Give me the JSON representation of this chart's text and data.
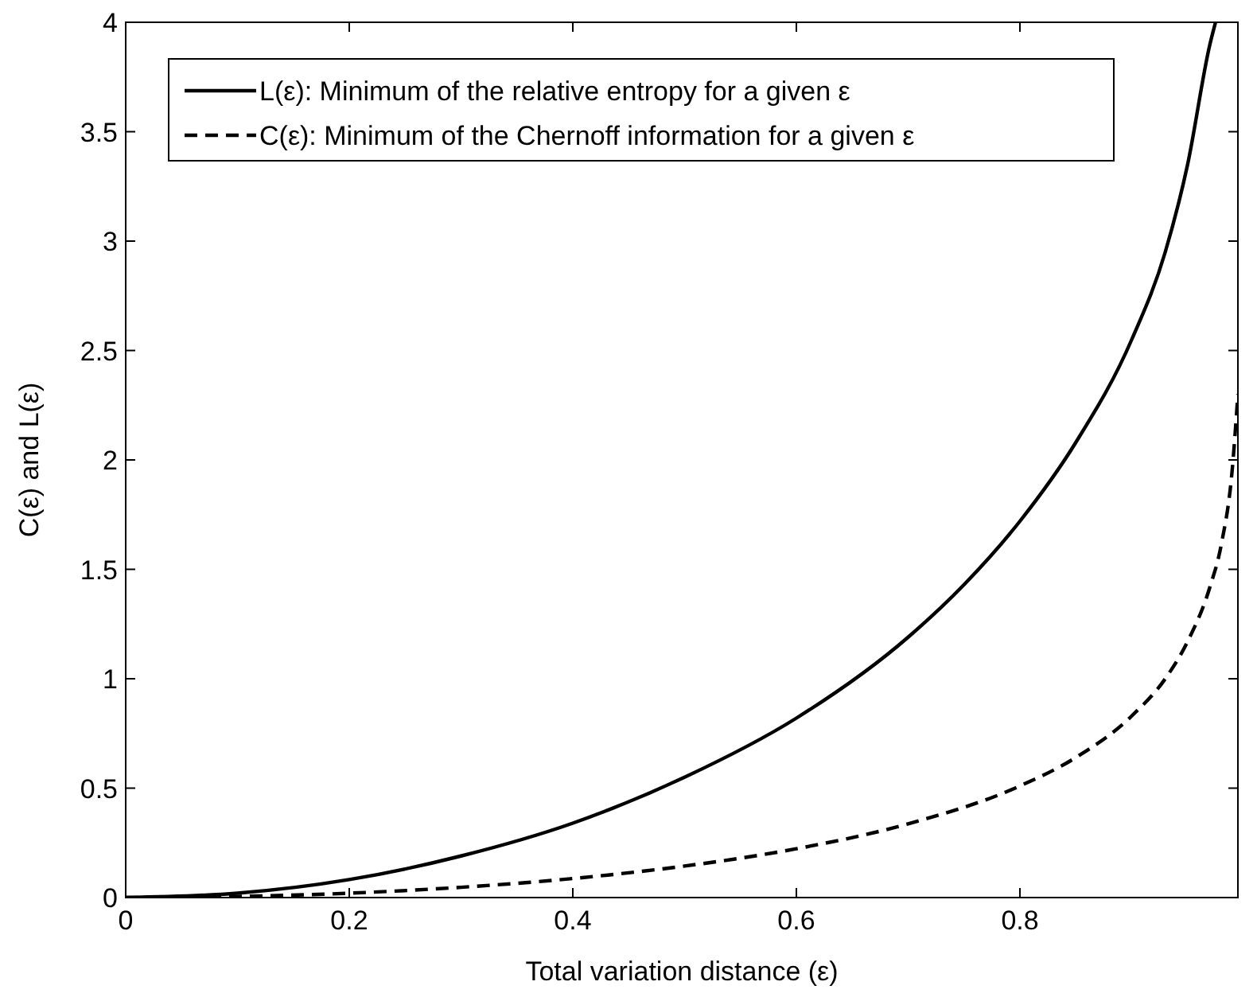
{
  "chart_data": {
    "type": "line",
    "xlabel": "Total variation distance (ε)",
    "ylabel": "C(ε) and L(ε)",
    "xlim": [
      0,
      0.995
    ],
    "ylim": [
      0,
      4
    ],
    "xticks": [
      0,
      0.2,
      0.4,
      0.6,
      0.8
    ],
    "yticks": [
      0,
      0.5,
      1,
      1.5,
      2,
      2.5,
      3,
      3.5,
      4
    ],
    "grid": false,
    "legend": "top left",
    "marker": "none",
    "series": [
      {
        "name": "L(ε): Minimum of the relative entropy for a given ε",
        "color": "#000000",
        "line_style": "solid",
        "x": [
          0,
          0.1,
          0.2,
          0.3,
          0.4,
          0.5,
          0.6,
          0.7,
          0.75,
          0.8,
          0.85,
          0.9,
          0.93,
          0.95,
          0.97,
          0.975
        ],
        "values": [
          0,
          0.02,
          0.082,
          0.19,
          0.34,
          0.55,
          0.82,
          1.19,
          1.43,
          1.72,
          2.08,
          2.55,
          2.95,
          3.35,
          3.9,
          4.0
        ]
      },
      {
        "name": "C(ε): Minimum of the Chernoff information for a given ε",
        "color": "#000000",
        "line_style": "dashed",
        "x": [
          0,
          0.1,
          0.2,
          0.3,
          0.4,
          0.5,
          0.6,
          0.7,
          0.8,
          0.85,
          0.9,
          0.93,
          0.95,
          0.97,
          0.98,
          0.99,
          0.995
        ],
        "values": [
          0,
          0.005,
          0.02,
          0.047,
          0.087,
          0.144,
          0.223,
          0.337,
          0.51,
          0.64,
          0.83,
          1.0,
          1.17,
          1.42,
          1.61,
          1.96,
          2.3
        ]
      }
    ]
  }
}
